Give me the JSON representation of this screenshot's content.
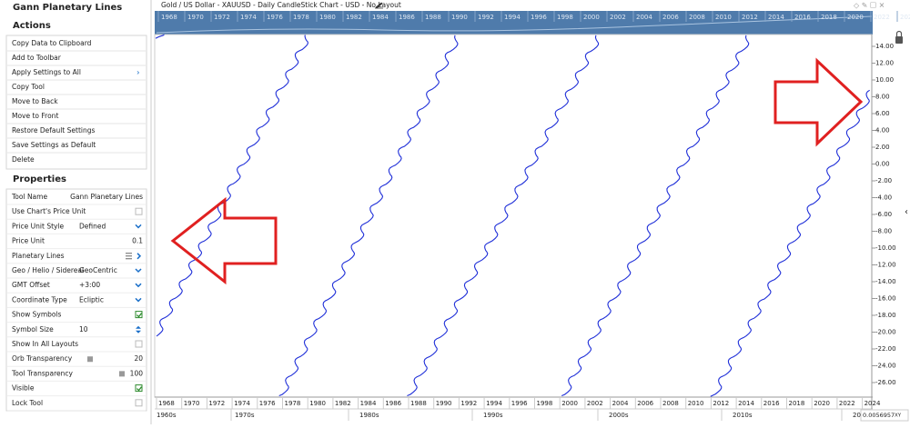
{
  "panel": {
    "title": "Gann Planetary Lines",
    "actions_heading": "Actions",
    "actions": [
      "Copy Data to Clipboard",
      "Add to Toolbar",
      "Apply Settings to All",
      "Copy Tool",
      "Move to Back",
      "Move to Front",
      "Restore Default Settings",
      "Save Settings as Default",
      "Delete"
    ],
    "properties_heading": "Properties",
    "properties": [
      {
        "label": "Tool Name",
        "value": "Gann Planetary Lines"
      },
      {
        "label": "Use Chart's Price Unit",
        "control": "checkbox",
        "checked": false
      },
      {
        "label": "Price Unit Style",
        "value": "Defined",
        "control": "select"
      },
      {
        "label": "Price Unit",
        "value": "0.1"
      },
      {
        "label": "Planetary Lines",
        "control": "list"
      },
      {
        "label": "Geo / Helio / Sidereal",
        "value": "GeoCentric",
        "control": "select"
      },
      {
        "label": "GMT Offset",
        "value": "+3:00",
        "control": "select"
      },
      {
        "label": "Coordinate Type",
        "value": "Ecliptic",
        "control": "select"
      },
      {
        "label": "Show Symbols",
        "control": "checkbox",
        "checked": true
      },
      {
        "label": "Symbol Size",
        "value": "10",
        "control": "spin"
      },
      {
        "label": "Show In All Layouts",
        "control": "checkbox",
        "checked": false
      },
      {
        "label": "Orb Transparency",
        "value": "20",
        "control": "slider"
      },
      {
        "label": "Tool Transparency",
        "value": "100",
        "control": "slider"
      },
      {
        "label": "Visible",
        "control": "checkbox",
        "checked": true
      },
      {
        "label": "Lock Tool",
        "control": "checkbox",
        "checked": false
      }
    ]
  },
  "chart": {
    "title": "Gold / US Dollar - XAUUSD - Daily CandleStick Chart - USD - No Layout",
    "years": [
      1968,
      1970,
      1972,
      1974,
      1976,
      1978,
      1980,
      1982,
      1984,
      1986,
      1988,
      1990,
      1992,
      1994,
      1996,
      1998,
      2000,
      2002,
      2004,
      2006,
      2008,
      2010,
      2012,
      2014,
      2016,
      2018,
      2020,
      2022,
      2024
    ],
    "decades": [
      "1960s",
      "1970s",
      "1980s",
      "1990s",
      "2000s",
      "2010s",
      "20"
    ],
    "y_axis_labels": [
      "14.00",
      "12.00",
      "10.00",
      "8.00",
      "6.00",
      "4.00",
      "2.00",
      "0.00",
      "-2.00",
      "-4.00",
      "-6.00",
      "-8.00",
      "-10.00",
      "-12.00",
      "-14.00",
      "-16.00",
      "-18.00",
      "-20.00",
      "-22.00",
      "-24.00",
      "-26.00"
    ],
    "scale_value": "0.0056957",
    "scale_mode": "XY"
  }
}
